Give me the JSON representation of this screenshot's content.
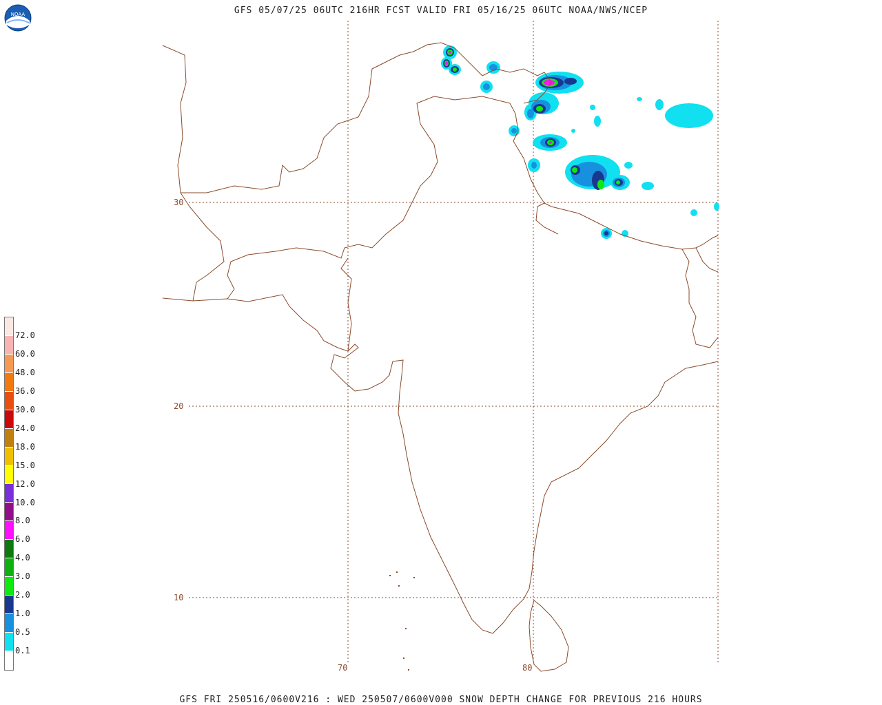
{
  "title": "GFS 05/07/25 06UTC 216HR FCST VALID FRI 05/16/25 06UTC NOAA/NWS/NCEP",
  "footer": "GFS FRI 250516/0600V216 : WED 250507/0600V000 SNOW DEPTH CHANGE FOR PREVIOUS 216 HOURS",
  "logo": {
    "icon": "noaa-logo-icon",
    "text": "NOAA"
  },
  "grid_labels": {
    "lat": [
      "30",
      "20",
      "10"
    ],
    "lon": [
      "70",
      "80"
    ]
  },
  "legend": {
    "labels": [
      "72.0",
      "60.0",
      "48.0",
      "36.0",
      "30.0",
      "24.0",
      "18.0",
      "15.0",
      "12.0",
      "10.0",
      "8.0",
      "6.0",
      "4.0",
      "3.0",
      "2.0",
      "1.0",
      "0.5",
      "0.1"
    ],
    "colors": [
      "#fbe8e4",
      "#f8b4b4",
      "#f59a54",
      "#f07a10",
      "#e84e10",
      "#c80a0a",
      "#c08010",
      "#f0c000",
      "#ffff00",
      "#7a30d8",
      "#90108a",
      "#ff10ff",
      "#107810",
      "#10b010",
      "#10e810",
      "#183890",
      "#1890e0",
      "#10e0f0",
      "#ffffff"
    ]
  },
  "colors": {
    "border": "#8b4a2a",
    "grid": "#8b4a2a"
  }
}
